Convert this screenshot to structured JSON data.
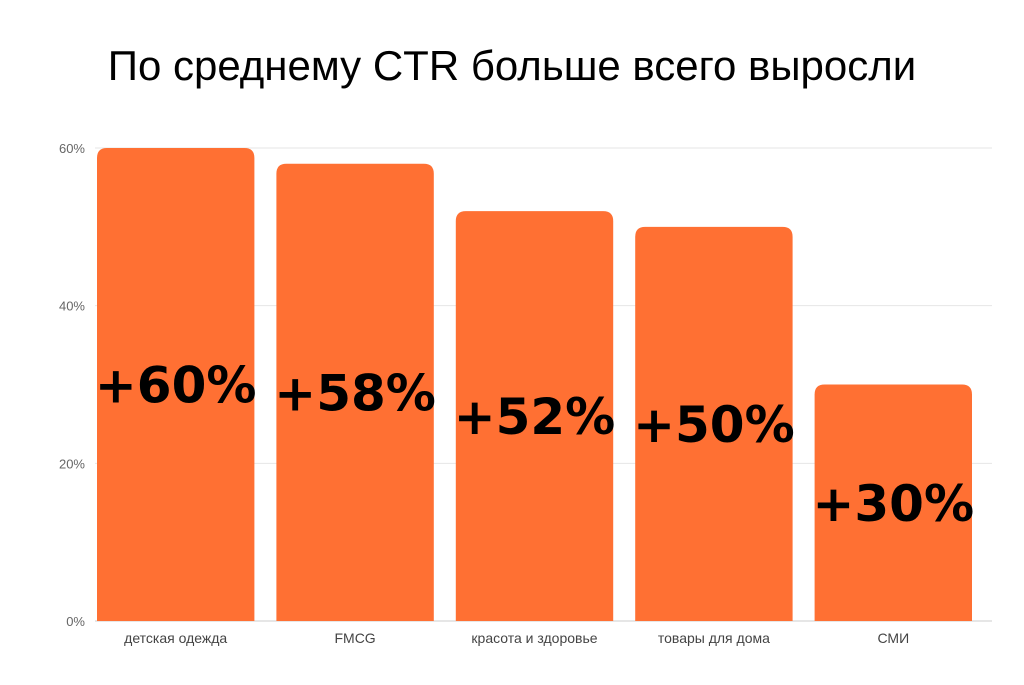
{
  "chart_data": {
    "type": "bar",
    "title": "По среднему CTR больше всего выросли",
    "categories": [
      "детская одежда",
      "FMCG",
      "красота и здоровье",
      "товары для дома",
      "СМИ"
    ],
    "values": [
      60,
      58,
      52,
      50,
      30
    ],
    "data_labels": [
      "+60%",
      "+58%",
      "+52%",
      "+50%",
      "+30%"
    ],
    "y_ticks": [
      "0%",
      "20%",
      "40%",
      "60%"
    ],
    "y_tick_values": [
      0,
      20,
      40,
      60
    ],
    "ylim": [
      0,
      60
    ],
    "grid": true,
    "bar_color": "#ff7033"
  }
}
